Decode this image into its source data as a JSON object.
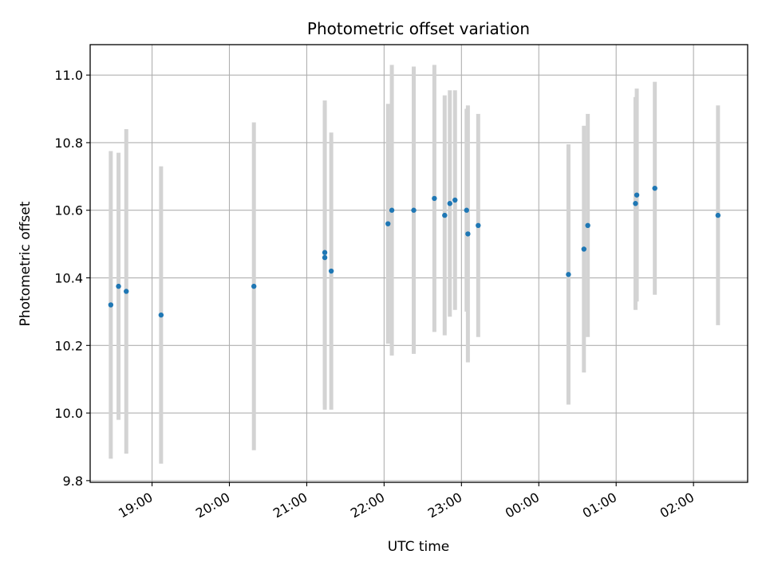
{
  "chart_data": {
    "type": "scatter",
    "title": "Photometric offset variation",
    "xlabel": "UTC time",
    "ylabel": "Photometric offset",
    "x_tick_labels": [
      "19:00",
      "20:00",
      "21:00",
      "22:00",
      "23:00",
      "00:00",
      "01:00",
      "02:00"
    ],
    "y_ticks": [
      9.8,
      10.0,
      10.2,
      10.4,
      10.6,
      10.8,
      11.0
    ],
    "y_tick_labels": [
      "9.8",
      "10.0",
      "10.2",
      "10.4",
      "10.6",
      "10.8",
      "11.0"
    ],
    "xlim": [
      "18:12",
      "02:42"
    ],
    "ylim": [
      9.795,
      11.09
    ],
    "grid": true,
    "colors": {
      "point": "#1f77b4",
      "errorbar": "#d3d3d3",
      "grid": "#b0b0b0"
    },
    "points": [
      {
        "time": "18:28",
        "y": 10.32,
        "yerr": 0.455
      },
      {
        "time": "18:34",
        "y": 10.375,
        "yerr": 0.395
      },
      {
        "time": "18:40",
        "y": 10.36,
        "yerr": 0.48
      },
      {
        "time": "19:07",
        "y": 10.29,
        "yerr": 0.44
      },
      {
        "time": "20:19",
        "y": 10.375,
        "yerr": 0.485
      },
      {
        "time": "21:14",
        "y": 10.475,
        "yerr": 0.45
      },
      {
        "time": "21:14",
        "y": 10.46,
        "yerr": 0.45
      },
      {
        "time": "21:19",
        "y": 10.42,
        "yerr": 0.41
      },
      {
        "time": "22:03",
        "y": 10.56,
        "yerr": 0.355
      },
      {
        "time": "22:06",
        "y": 10.6,
        "yerr": 0.43
      },
      {
        "time": "22:23",
        "y": 10.6,
        "yerr": 0.425
      },
      {
        "time": "22:39",
        "y": 10.635,
        "yerr": 0.395
      },
      {
        "time": "22:47",
        "y": 10.585,
        "yerr": 0.355
      },
      {
        "time": "22:51",
        "y": 10.62,
        "yerr": 0.335
      },
      {
        "time": "22:55",
        "y": 10.63,
        "yerr": 0.325
      },
      {
        "time": "23:04",
        "y": 10.6,
        "yerr": 0.3
      },
      {
        "time": "23:05",
        "y": 10.53,
        "yerr": 0.38
      },
      {
        "time": "23:13",
        "y": 10.555,
        "yerr": 0.33
      },
      {
        "time": "00:23",
        "y": 10.41,
        "yerr": 0.385
      },
      {
        "time": "00:35",
        "y": 10.485,
        "yerr": 0.365
      },
      {
        "time": "00:38",
        "y": 10.555,
        "yerr": 0.33
      },
      {
        "time": "01:15",
        "y": 10.62,
        "yerr": 0.315
      },
      {
        "time": "01:16",
        "y": 10.645,
        "yerr": 0.315
      },
      {
        "time": "01:30",
        "y": 10.665,
        "yerr": 0.315
      },
      {
        "time": "02:19",
        "y": 10.585,
        "yerr": 0.325
      }
    ]
  }
}
